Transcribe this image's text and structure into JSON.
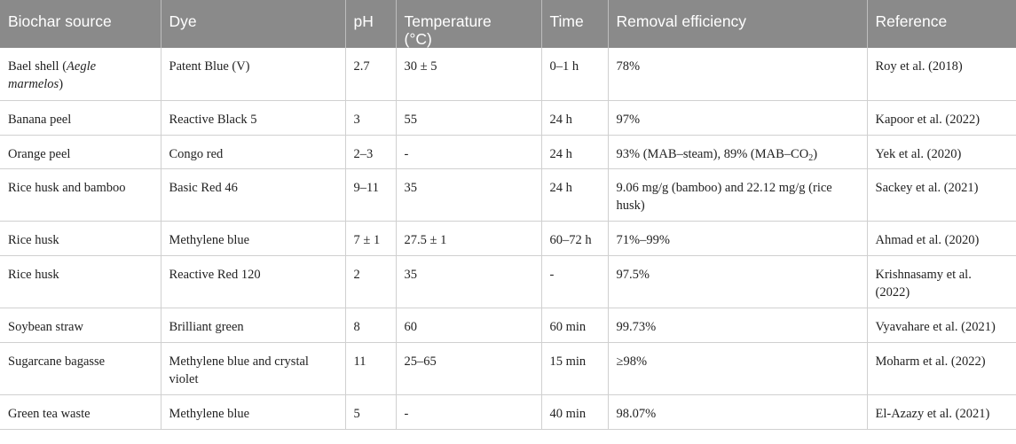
{
  "headers": [
    "Biochar source",
    "Dye",
    "pH",
    "Temperature",
    "(°C)",
    "Time",
    "Removal efficiency",
    "Reference"
  ],
  "rows": [
    {
      "source_a": "Bael shell (",
      "source_i": "Aegle marmelos",
      "source_b": ")",
      "dye": "Patent Blue (V)",
      "ph": "2.7",
      "temp": "30 ± 5",
      "time": "0–1 h",
      "removal": "78%",
      "ref": "Roy et al. (2018)"
    },
    {
      "source": "Banana peel",
      "dye": "Reactive Black 5",
      "ph": "3",
      "temp": "55",
      "time": "24 h",
      "removal": "97%",
      "ref": "Kapoor et al. (2022)"
    },
    {
      "source": "Orange peel",
      "dye": "Congo red",
      "ph": "2–3",
      "temp": "-",
      "time": "24 h",
      "removal_a": "93% (MAB–steam), 89% (MAB–CO",
      "removal_sub": "2",
      "removal_b": ")",
      "ref": "Yek et al. (2020)"
    },
    {
      "source": "Rice husk and bamboo",
      "dye": "Basic Red 46",
      "ph": "9–11",
      "temp": "35",
      "time": "24 h",
      "removal": "9.06 mg/g (bamboo) and 22.12 mg/g (rice husk)",
      "ref": "Sackey et al. (2021)"
    },
    {
      "source": "Rice husk",
      "dye": "Methylene blue",
      "ph": "7 ± 1",
      "temp": "27.5 ± 1",
      "time": "60–72 h",
      "removal": "71%–99%",
      "ref": "Ahmad et al. (2020)"
    },
    {
      "source": "Rice husk",
      "dye": "Reactive Red 120",
      "ph": "2",
      "temp": "35",
      "time": "-",
      "removal": "97.5%",
      "ref": "Krishnasamy et al. (2022)"
    },
    {
      "source": "Soybean straw",
      "dye": "Brilliant green",
      "ph": "8",
      "temp": "60",
      "time": "60 min",
      "removal": "99.73%",
      "ref": "Vyavahare et al. (2021)"
    },
    {
      "source": "Sugarcane bagasse",
      "dye": "Methylene blue and crystal violet",
      "ph": "11",
      "temp": "25–65",
      "time": "15 min",
      "removal": "≥98%",
      "ref": "Moharm et al. (2022)"
    },
    {
      "source": "Green tea waste",
      "dye": "Methylene blue",
      "ph": "5",
      "temp": "-",
      "time": "40 min",
      "removal": "98.07%",
      "ref": "El-Azazy et al. (2021)"
    }
  ]
}
